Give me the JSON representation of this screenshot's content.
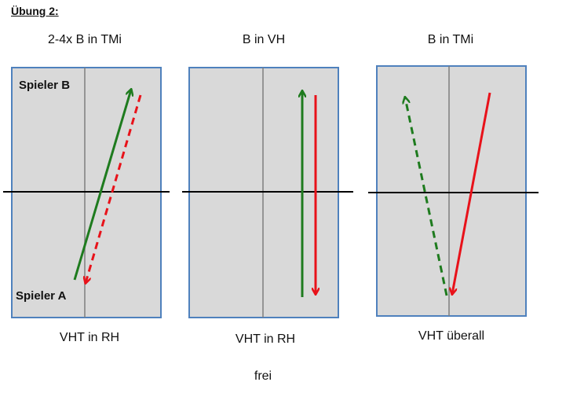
{
  "page_title": "Übung 2:",
  "panels": [
    {
      "top_label": "2-4x B in TMi",
      "bottom_label": "VHT in RH"
    },
    {
      "top_label": "B in VH",
      "bottom_label": "VHT in RH"
    },
    {
      "top_label": "B in TMi",
      "bottom_label": "VHT überall"
    }
  ],
  "player_b_label": "Spieler B",
  "player_a_label": "Spieler A",
  "footer_label": "frei",
  "colors": {
    "court_fill": "#d9d9d9",
    "court_border": "#4f81bd",
    "net": "#000000",
    "center_line": "#7f7f7f",
    "green_arrow": "#1e7b1e",
    "red_arrow": "#e8121a"
  }
}
